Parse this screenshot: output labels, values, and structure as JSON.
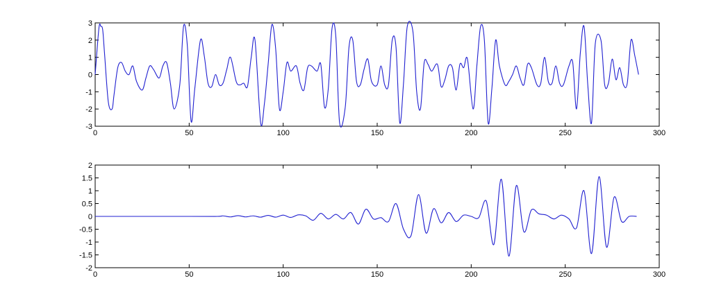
{
  "chart_data": [
    {
      "type": "line",
      "title": "",
      "xlabel": "",
      "ylabel": "",
      "xlim": [
        0,
        300
      ],
      "ylim": [
        -3,
        3
      ],
      "grid": false,
      "x_ticks": [
        "0",
        "50",
        "100",
        "150",
        "200",
        "250",
        "300"
      ],
      "y_ticks": [
        "3",
        "2",
        "1",
        "0",
        "-1",
        "-2",
        "-3"
      ],
      "color": "#1f1fd0",
      "series": [
        {
          "x": [
            0,
            2,
            3,
            4,
            5,
            7,
            9,
            10,
            12,
            14,
            16,
            18,
            20,
            22,
            25,
            27,
            29,
            31,
            34,
            36,
            38,
            40,
            42,
            45,
            47,
            49,
            51,
            53,
            56,
            58,
            60,
            62,
            64,
            66,
            68,
            70,
            72,
            75,
            77,
            79,
            81,
            83,
            85,
            88,
            90,
            92,
            94,
            96,
            98,
            100,
            102,
            104,
            107,
            109,
            111,
            113,
            115,
            118,
            120,
            122,
            124,
            126,
            128,
            130,
            133,
            135,
            137,
            139,
            141,
            143,
            145,
            147,
            150,
            152,
            154,
            156,
            158,
            160,
            162,
            164,
            166,
            169,
            171,
            173,
            175,
            177,
            179,
            182,
            184,
            186,
            188,
            190,
            192,
            194,
            196,
            198,
            201,
            203,
            205,
            207,
            209,
            211,
            213,
            215,
            218,
            220,
            222,
            224,
            226,
            228,
            230,
            232,
            235,
            237,
            239,
            241,
            243,
            245,
            247,
            249,
            252,
            254,
            256,
            258,
            260,
            262,
            264,
            266,
            269,
            271,
            273,
            275,
            277,
            279,
            281,
            283,
            285,
            287,
            289
          ],
          "y": [
            0,
            2.7,
            2.8,
            2.6,
            1.2,
            -1.6,
            -2.0,
            -1.2,
            0.4,
            0.7,
            0.2,
            0.0,
            0.5,
            -0.4,
            -0.9,
            -0.2,
            0.5,
            0.3,
            -0.2,
            0.5,
            0.7,
            -0.5,
            -2.0,
            -0.6,
            2.8,
            1.7,
            -2.7,
            -0.8,
            2.0,
            1.1,
            -0.5,
            -0.7,
            0.0,
            -0.6,
            -0.5,
            0.3,
            1.0,
            -0.4,
            -0.6,
            -0.5,
            -0.7,
            1.0,
            2.0,
            -2.8,
            -1.7,
            0.6,
            2.9,
            1.5,
            -2.0,
            -1.0,
            0.7,
            0.2,
            0.5,
            -0.5,
            -0.9,
            0.4,
            0.5,
            0.2,
            0.6,
            -1.9,
            -0.8,
            2.7,
            2.2,
            -2.8,
            -1.9,
            1.6,
            2.0,
            -0.4,
            -0.6,
            0.3,
            0.9,
            -0.4,
            -0.6,
            0.5,
            -0.6,
            -0.6,
            2.0,
            1.6,
            -2.8,
            -0.5,
            2.8,
            2.5,
            -1.0,
            -2.0,
            0.7,
            0.6,
            0.2,
            0.6,
            -0.7,
            -0.3,
            0.5,
            0.4,
            -0.9,
            0.6,
            0.4,
            0.9,
            -2.0,
            0.5,
            2.8,
            2.0,
            -2.8,
            -0.8,
            2.0,
            0.5,
            -0.6,
            -0.4,
            0.0,
            0.5,
            -0.2,
            -0.6,
            0.6,
            0.4,
            -0.6,
            -0.5,
            1.0,
            -0.4,
            -0.5,
            0.5,
            -0.5,
            -0.6,
            0.5,
            0.7,
            -2.0,
            1.2,
            2.8,
            -0.6,
            -2.8,
            1.8,
            2.0,
            -0.6,
            -0.5,
            0.9,
            -0.3,
            0.4,
            -0.6,
            -0.5,
            2.0,
            1.1,
            0.0
          ]
        }
      ]
    },
    {
      "type": "line",
      "title": "",
      "xlabel": "",
      "ylabel": "",
      "xlim": [
        0,
        300
      ],
      "ylim": [
        -2,
        2
      ],
      "grid": false,
      "x_ticks": [
        "0",
        "50",
        "100",
        "150",
        "200",
        "250",
        "300"
      ],
      "y_ticks": [
        "2",
        "1.5",
        "1",
        "0.5",
        "0",
        "-0.5",
        "-1",
        "-1.5",
        "-2"
      ],
      "color": "#1f1fd0",
      "series": [
        {
          "x": [
            0,
            50,
            65,
            68,
            72,
            76,
            80,
            84,
            88,
            92,
            96,
            100,
            104,
            108,
            112,
            116,
            120,
            124,
            128,
            132,
            136,
            140,
            144,
            148,
            152,
            156,
            160,
            164,
            168,
            172,
            176,
            180,
            184,
            188,
            192,
            196,
            200,
            204,
            208,
            212,
            216,
            220,
            224,
            228,
            232,
            236,
            240,
            244,
            248,
            252,
            256,
            260,
            264,
            268,
            272,
            276,
            280,
            284,
            288
          ],
          "y": [
            0,
            0,
            0,
            0.02,
            -0.02,
            0.03,
            -0.02,
            0.02,
            -0.03,
            0.04,
            -0.03,
            0.05,
            -0.04,
            0.06,
            0.02,
            -0.15,
            0.12,
            -0.1,
            0.08,
            -0.1,
            0.15,
            -0.3,
            0.28,
            -0.1,
            -0.05,
            -0.2,
            0.5,
            -0.5,
            -0.75,
            0.85,
            -0.65,
            0.3,
            -0.25,
            0.15,
            -0.2,
            0.05,
            0.0,
            -0.05,
            0.6,
            -1.1,
            1.45,
            -1.55,
            1.2,
            -0.6,
            0.25,
            0.1,
            0.05,
            -0.1,
            0.05,
            -0.1,
            -0.45,
            1.0,
            -1.45,
            1.55,
            -1.2,
            0.75,
            -0.2,
            0.0,
            0.0
          ]
        }
      ]
    }
  ]
}
